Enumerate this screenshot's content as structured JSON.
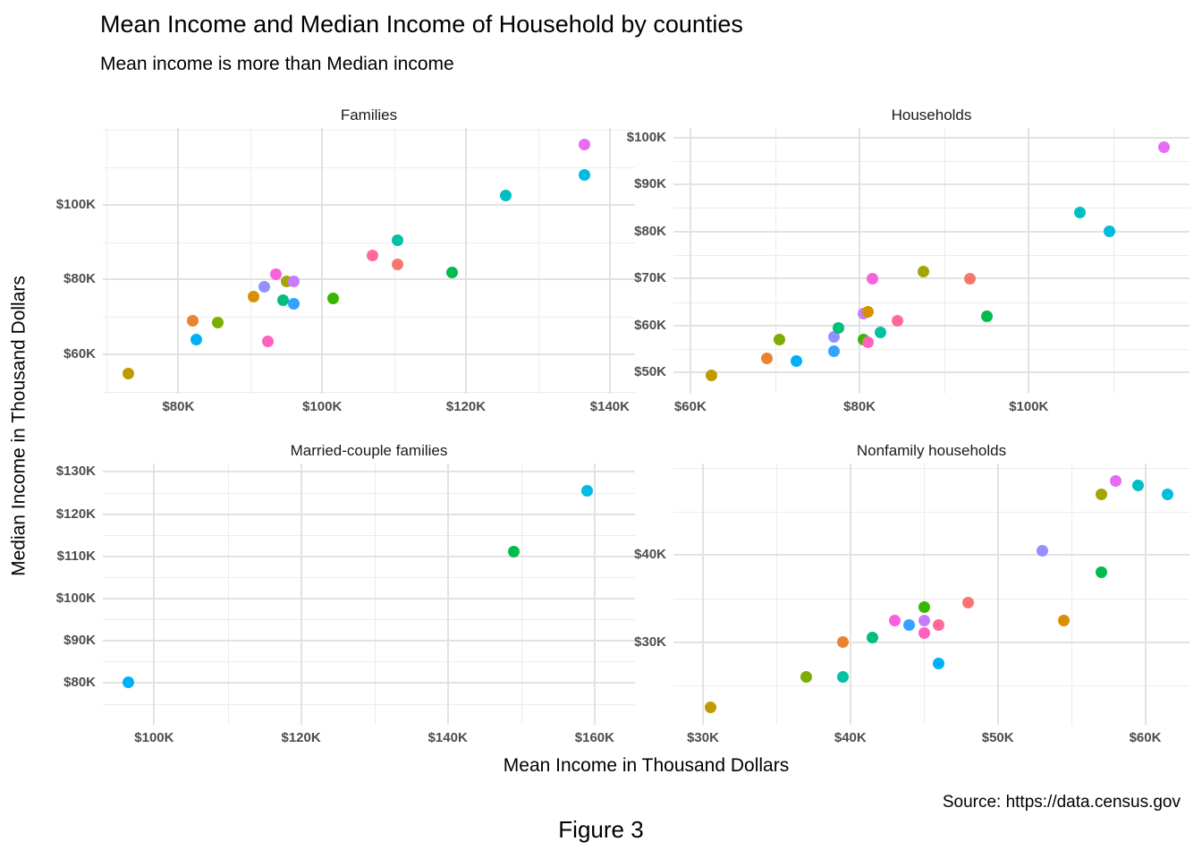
{
  "title": "Mean Income and Median Income of Household by counties",
  "subtitle": "Mean income is more than Median income",
  "axis": {
    "x_title": "Mean Income in Thousand Dollars",
    "y_title": "Median Income in Thousand Dollars"
  },
  "caption": "Source: https://data.census.gov",
  "figure_label": "Figure 3",
  "chart_data": {
    "type": "scatter",
    "unit": "thousand US dollars (K)",
    "x_variable": "Mean income",
    "y_variable": "Median income",
    "legend_position": "none",
    "grid": "on",
    "point_color_scheme": "ggplot2 20-level hue palette, one color per county",
    "facets": [
      {
        "title": "Families",
        "x": {
          "domain": [
            69.5,
            143.5
          ],
          "majors": [
            80,
            100,
            120,
            140
          ],
          "major_labels": [
            "$80K",
            "$100K",
            "$120K",
            "$140K"
          ],
          "minors": [
            70,
            90,
            110,
            130
          ]
        },
        "y": {
          "domain": [
            49.5,
            120.5
          ],
          "majors": [
            60,
            80,
            100
          ],
          "major_labels": [
            "$60K",
            "$80K",
            "$100K"
          ],
          "minors": [
            50,
            70,
            90,
            110,
            120
          ]
        },
        "points": [
          {
            "mean": 73,
            "median": 55,
            "color": "#C09B00"
          },
          {
            "mean": 82,
            "median": 69,
            "color": "#EA8331"
          },
          {
            "mean": 82.5,
            "median": 64,
            "color": "#00B0F6"
          },
          {
            "mean": 85.5,
            "median": 68.5,
            "color": "#7CAE00"
          },
          {
            "mean": 90.5,
            "median": 75.5,
            "color": "#D89000"
          },
          {
            "mean": 92,
            "median": 78,
            "color": "#9590FF"
          },
          {
            "mean": 92.5,
            "median": 63.5,
            "color": "#FF62BC"
          },
          {
            "mean": 93.5,
            "median": 81.5,
            "color": "#FA62DB"
          },
          {
            "mean": 94.5,
            "median": 74.5,
            "color": "#00BF7D"
          },
          {
            "mean": 95,
            "median": 79.5,
            "color": "#A3A500"
          },
          {
            "mean": 96,
            "median": 79.5,
            "color": "#C77CFF"
          },
          {
            "mean": 96,
            "median": 73.5,
            "color": "#35A2FF"
          },
          {
            "mean": 101.5,
            "median": 75,
            "color": "#39B600"
          },
          {
            "mean": 107,
            "median": 86.5,
            "color": "#FF6A98"
          },
          {
            "mean": 110.5,
            "median": 90.5,
            "color": "#00C1A3"
          },
          {
            "mean": 110.5,
            "median": 84,
            "color": "#F8766D"
          },
          {
            "mean": 118,
            "median": 82,
            "color": "#00BB4E"
          },
          {
            "mean": 125.5,
            "median": 102.5,
            "color": "#00BFC4"
          },
          {
            "mean": 136.5,
            "median": 108,
            "color": "#00BAE0"
          },
          {
            "mean": 136.5,
            "median": 116,
            "color": "#E76BF3"
          }
        ]
      },
      {
        "title": "Households",
        "x": {
          "domain": [
            58,
            119
          ],
          "majors": [
            60,
            80,
            100
          ],
          "major_labels": [
            "$60K",
            "$80K",
            "$100K"
          ],
          "minors": [
            70,
            90,
            110
          ]
        },
        "y": {
          "domain": [
            45.5,
            102
          ],
          "majors": [
            50,
            60,
            70,
            80,
            90,
            100
          ],
          "major_labels": [
            "$50K",
            "$60K",
            "$70K",
            "$80K",
            "$90K",
            "$100K"
          ],
          "minors": [
            55,
            65,
            75,
            85,
            95
          ]
        },
        "points": [
          {
            "mean": 62.5,
            "median": 49.5,
            "color": "#C09B00"
          },
          {
            "mean": 69,
            "median": 53,
            "color": "#EA8331"
          },
          {
            "mean": 70.5,
            "median": 57,
            "color": "#7CAE00"
          },
          {
            "mean": 72.5,
            "median": 52.5,
            "color": "#00B0F6"
          },
          {
            "mean": 77,
            "median": 54.5,
            "color": "#35A2FF"
          },
          {
            "mean": 77,
            "median": 57.5,
            "color": "#9590FF"
          },
          {
            "mean": 77.5,
            "median": 59.5,
            "color": "#00BF7D"
          },
          {
            "mean": 80.5,
            "median": 57,
            "color": "#39B600"
          },
          {
            "mean": 80.5,
            "median": 62.5,
            "color": "#C77CFF"
          },
          {
            "mean": 81,
            "median": 56.5,
            "color": "#FF62BC"
          },
          {
            "mean": 81,
            "median": 63,
            "color": "#D89000"
          },
          {
            "mean": 81.5,
            "median": 70,
            "color": "#FA62DB"
          },
          {
            "mean": 82.5,
            "median": 58.5,
            "color": "#00C1A3"
          },
          {
            "mean": 84.5,
            "median": 61,
            "color": "#FF6A98"
          },
          {
            "mean": 87.5,
            "median": 71.5,
            "color": "#A3A500"
          },
          {
            "mean": 93,
            "median": 70,
            "color": "#F8766D"
          },
          {
            "mean": 95,
            "median": 62,
            "color": "#00BB4E"
          },
          {
            "mean": 106,
            "median": 84,
            "color": "#00BFC4"
          },
          {
            "mean": 109.5,
            "median": 80,
            "color": "#00BAE0"
          },
          {
            "mean": 116,
            "median": 98,
            "color": "#E76BF3"
          }
        ]
      },
      {
        "title": "Married-couple families",
        "x": {
          "domain": [
            93,
            165.5
          ],
          "majors": [
            100,
            120,
            140,
            160
          ],
          "major_labels": [
            "$100K",
            "$120K",
            "$140K",
            "$160K"
          ],
          "minors": [
            110,
            130,
            150
          ]
        },
        "y": {
          "domain": [
            70,
            132
          ],
          "majors": [
            80,
            90,
            100,
            110,
            120,
            130
          ],
          "major_labels": [
            "$80K",
            "$90K",
            "$100K",
            "$110K",
            "$120K",
            "$130K"
          ],
          "minors": [
            75,
            85,
            95,
            105,
            115,
            125
          ]
        },
        "points": [
          {
            "mean": 96.5,
            "median": 80,
            "color": "#00B0F6"
          },
          {
            "mean": 149,
            "median": 111,
            "color": "#00BB4E"
          },
          {
            "mean": 159,
            "median": 125.5,
            "color": "#00BAE0"
          }
        ]
      },
      {
        "title": "Nonfamily households",
        "x": {
          "domain": [
            28,
            63
          ],
          "majors": [
            30,
            40,
            50,
            60
          ],
          "major_labels": [
            "$30K",
            "$40K",
            "$50K",
            "$60K"
          ],
          "minors": [
            35,
            45,
            55
          ]
        },
        "y": {
          "domain": [
            20.5,
            50.5
          ],
          "majors": [
            30,
            40
          ],
          "major_labels": [
            "$30K",
            "$40K"
          ],
          "minors": [
            25,
            35,
            45,
            50
          ]
        },
        "points": [
          {
            "mean": 30.5,
            "median": 22.5,
            "color": "#C09B00"
          },
          {
            "mean": 37,
            "median": 26,
            "color": "#7CAE00"
          },
          {
            "mean": 39.5,
            "median": 26,
            "color": "#00C1A3"
          },
          {
            "mean": 39.5,
            "median": 30,
            "color": "#EA8331"
          },
          {
            "mean": 41.5,
            "median": 30.5,
            "color": "#00BF7D"
          },
          {
            "mean": 43,
            "median": 32.5,
            "color": "#FA62DB"
          },
          {
            "mean": 44,
            "median": 32,
            "color": "#35A2FF"
          },
          {
            "mean": 45,
            "median": 31,
            "color": "#FF62BC"
          },
          {
            "mean": 45,
            "median": 32.5,
            "color": "#C77CFF"
          },
          {
            "mean": 45,
            "median": 34,
            "color": "#39B600"
          },
          {
            "mean": 46,
            "median": 27.5,
            "color": "#00B0F6"
          },
          {
            "mean": 46,
            "median": 32,
            "color": "#FF6A98"
          },
          {
            "mean": 48,
            "median": 34.5,
            "color": "#F8766D"
          },
          {
            "mean": 53,
            "median": 40.5,
            "color": "#9590FF"
          },
          {
            "mean": 54.5,
            "median": 32.5,
            "color": "#D89000"
          },
          {
            "mean": 57,
            "median": 38,
            "color": "#00BB4E"
          },
          {
            "mean": 57,
            "median": 47,
            "color": "#A3A500"
          },
          {
            "mean": 58,
            "median": 48.5,
            "color": "#E76BF3"
          },
          {
            "mean": 59.5,
            "median": 48,
            "color": "#00BFC4"
          },
          {
            "mean": 61.5,
            "median": 47,
            "color": "#00BAE0"
          }
        ]
      }
    ]
  }
}
